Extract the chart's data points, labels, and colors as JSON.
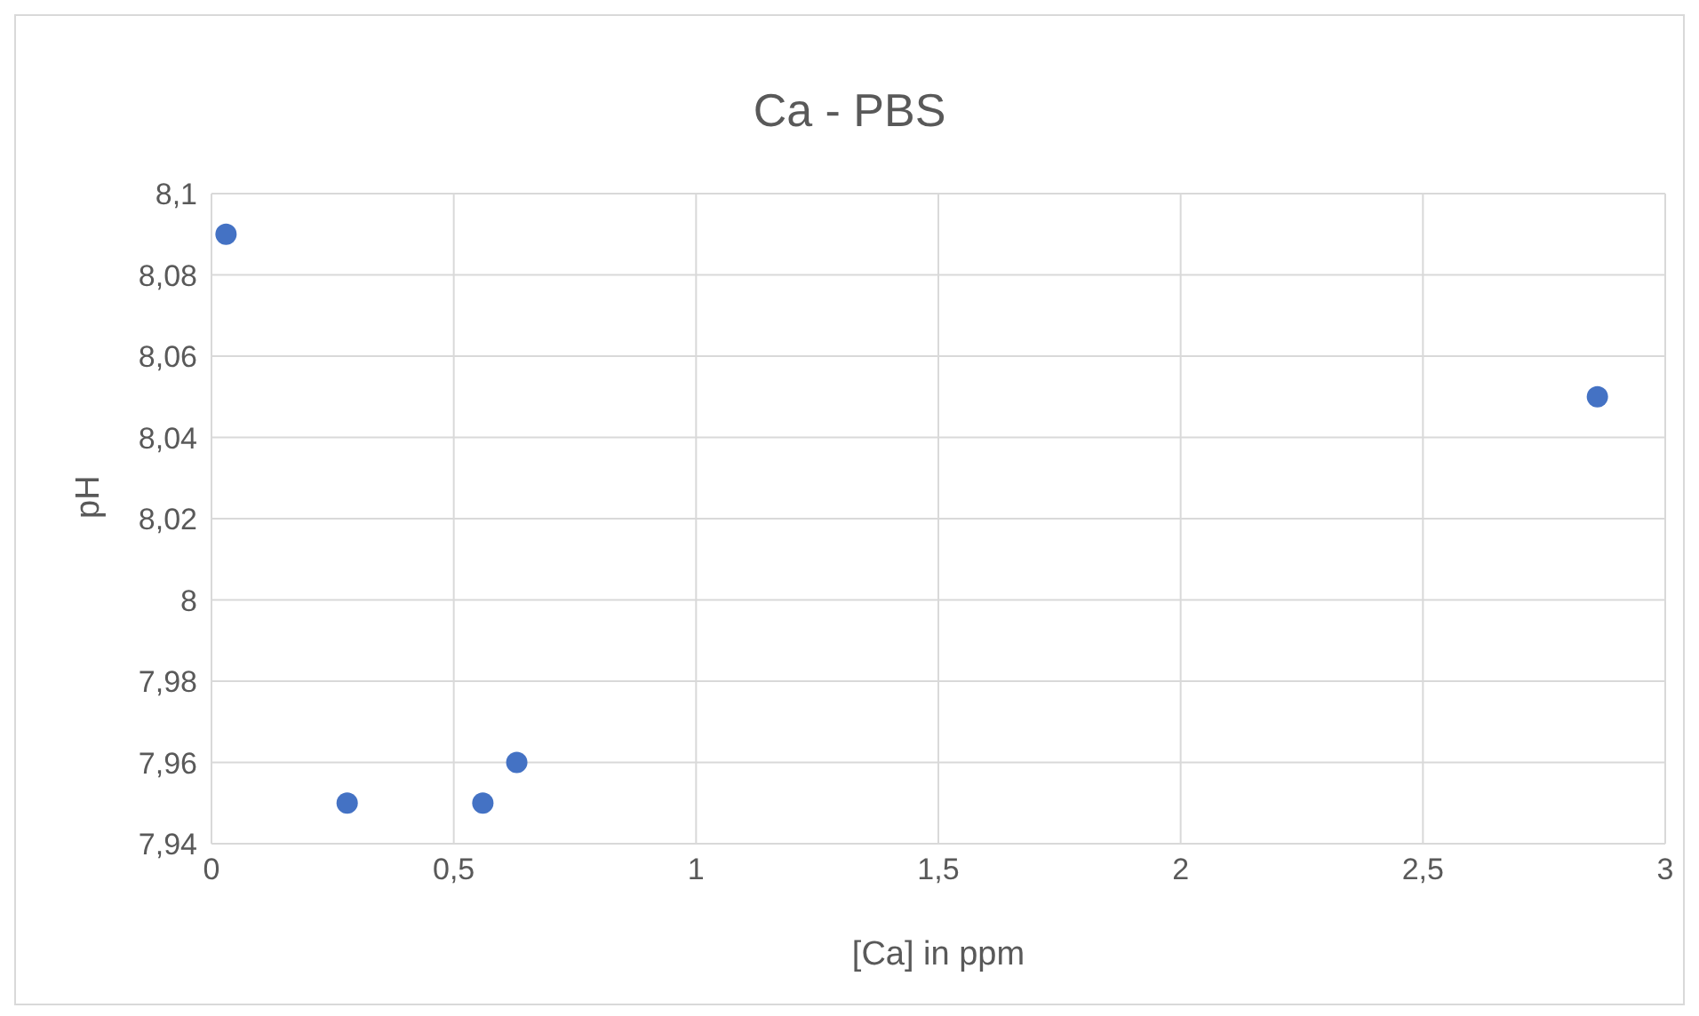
{
  "chart_data": {
    "type": "scatter",
    "title": "Ca - PBS",
    "xlabel": "[Ca] in ppm",
    "ylabel": "pH",
    "x": [
      0.03,
      0.28,
      0.56,
      0.63,
      2.86
    ],
    "series": [
      {
        "color": "#4472c4",
        "values": [
          8.09,
          7.95,
          7.95,
          7.96,
          8.05
        ]
      }
    ],
    "xlim": [
      0,
      3
    ],
    "xticks": [
      0,
      {
        "value": 0.5,
        "label": "0,5"
      },
      1,
      {
        "value": 1.5,
        "label": "1,5"
      },
      2,
      {
        "value": 2.5,
        "label": "2,5"
      },
      3
    ],
    "ylim": [
      7.94,
      8.1
    ],
    "yticks": [
      {
        "value": 7.94,
        "label": "7,94"
      },
      {
        "value": 7.96,
        "label": "7,96"
      },
      {
        "value": 7.98,
        "label": "7,98"
      },
      8,
      {
        "value": 8.02,
        "label": "8,02"
      },
      {
        "value": 8.04,
        "label": "8,04"
      },
      {
        "value": 8.06,
        "label": "8,06"
      },
      {
        "value": 8.08,
        "label": "8,08"
      },
      {
        "value": 8.1,
        "label": "8,1"
      }
    ],
    "grid": true,
    "marker": "circle",
    "legend": false
  }
}
